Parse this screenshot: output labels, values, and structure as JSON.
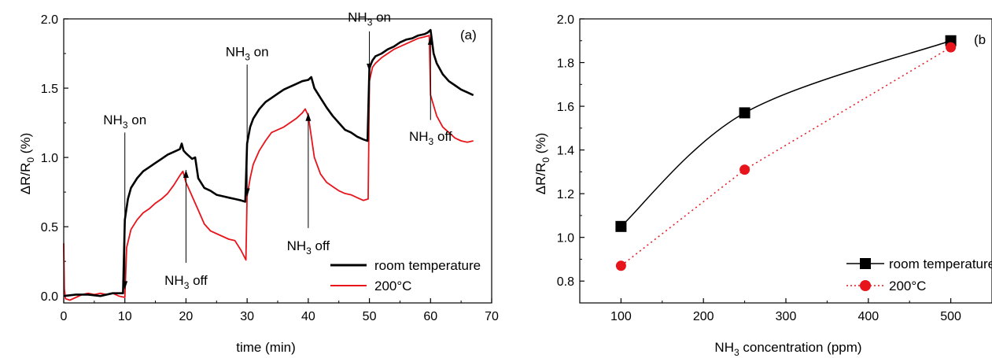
{
  "chart_data": [
    {
      "type": "line",
      "panel_label": "(a)",
      "xlabel": "time (min)",
      "ylabel": {
        "base": "ΔR/R",
        "sub": "0",
        "tail": " (%)"
      },
      "xlim": [
        0,
        70
      ],
      "ylim": [
        -0.05,
        2.0
      ],
      "x_ticks": [
        0,
        10,
        20,
        30,
        40,
        50,
        60,
        70
      ],
      "y_ticks": [
        0.0,
        0.5,
        1.0,
        1.5,
        2.0
      ],
      "y_tick_labels": [
        "0.0",
        "0.5",
        "1.0",
        "1.5",
        "2.0"
      ],
      "legend_position": "bottom-right",
      "series": [
        {
          "name": "room temperature",
          "color": "#000000",
          "x": [
            0,
            2,
            4,
            6,
            8,
            9.7,
            10,
            10.5,
            11,
            12,
            13,
            14,
            15,
            16,
            17,
            18,
            19,
            19.3,
            19.6,
            20,
            21,
            21.5,
            22,
            23,
            24,
            25,
            26,
            27,
            28,
            29,
            29.7,
            30,
            30.5,
            31,
            32,
            33,
            34,
            35,
            36,
            37,
            38,
            39,
            40,
            40.5,
            41,
            42,
            43,
            44,
            45,
            46,
            47,
            48,
            49,
            49.7,
            50,
            50.5,
            51,
            52,
            53,
            54,
            55,
            56,
            57,
            58,
            59,
            59.5,
            60,
            60.5,
            61,
            62,
            63,
            64,
            65,
            66,
            67
          ],
          "y": [
            0.0,
            0.01,
            0.01,
            0.0,
            0.02,
            0.02,
            0.55,
            0.7,
            0.78,
            0.85,
            0.9,
            0.93,
            0.96,
            0.99,
            1.02,
            1.04,
            1.06,
            1.1,
            1.05,
            1.03,
            0.99,
            1.0,
            0.85,
            0.78,
            0.76,
            0.73,
            0.72,
            0.71,
            0.7,
            0.69,
            0.68,
            1.1,
            1.22,
            1.28,
            1.35,
            1.4,
            1.43,
            1.46,
            1.49,
            1.51,
            1.53,
            1.55,
            1.56,
            1.58,
            1.5,
            1.43,
            1.36,
            1.3,
            1.25,
            1.2,
            1.18,
            1.15,
            1.13,
            1.12,
            1.65,
            1.7,
            1.73,
            1.75,
            1.78,
            1.8,
            1.83,
            1.85,
            1.86,
            1.88,
            1.89,
            1.9,
            1.92,
            1.75,
            1.68,
            1.6,
            1.55,
            1.52,
            1.49,
            1.47,
            1.45
          ]
        },
        {
          "name": "200°C",
          "color": "#e8141b",
          "x": [
            0,
            0.1,
            0.3,
            1,
            2,
            3,
            4,
            5,
            6,
            7,
            8,
            9,
            10,
            10.3,
            11,
            12,
            13,
            14,
            15,
            16,
            17,
            18,
            19,
            19.5,
            20,
            21,
            22,
            23,
            24,
            25,
            26,
            27,
            28,
            29,
            29.8,
            30,
            30.5,
            31,
            32,
            33,
            34,
            35,
            36,
            37,
            38,
            39,
            39.5,
            40,
            41,
            42,
            43,
            44,
            45,
            46,
            47,
            48,
            49,
            49.8,
            50,
            50.5,
            51,
            52,
            53,
            54,
            55,
            56,
            57,
            58,
            59,
            59.8,
            60,
            61,
            62,
            63,
            64,
            65,
            66,
            67
          ],
          "y": [
            0.38,
            0.05,
            -0.02,
            -0.03,
            -0.01,
            0.01,
            0.02,
            0.01,
            0.02,
            0.01,
            0.02,
            0.0,
            -0.01,
            0.35,
            0.48,
            0.55,
            0.6,
            0.63,
            0.67,
            0.7,
            0.74,
            0.8,
            0.87,
            0.9,
            0.82,
            0.72,
            0.62,
            0.52,
            0.47,
            0.45,
            0.43,
            0.41,
            0.4,
            0.33,
            0.26,
            0.72,
            0.85,
            0.95,
            1.05,
            1.12,
            1.18,
            1.2,
            1.22,
            1.25,
            1.28,
            1.32,
            1.35,
            1.3,
            1.0,
            0.88,
            0.82,
            0.79,
            0.76,
            0.74,
            0.73,
            0.71,
            0.69,
            0.7,
            1.55,
            1.65,
            1.68,
            1.72,
            1.75,
            1.78,
            1.8,
            1.82,
            1.84,
            1.86,
            1.87,
            1.88,
            1.45,
            1.3,
            1.22,
            1.18,
            1.14,
            1.12,
            1.11,
            1.12
          ]
        }
      ],
      "annotations": [
        {
          "base": "NH",
          "sub": "3",
          "tail": " on",
          "kind": "on",
          "x": 10,
          "label_y": 1.24,
          "arrow_from": 1.18,
          "arrow_to": 0.05
        },
        {
          "base": "NH",
          "sub": "3",
          "tail": " off",
          "kind": "off",
          "x": 20,
          "label_y": 0.08,
          "arrow_from": 0.24,
          "arrow_to": 0.91
        },
        {
          "base": "NH",
          "sub": "3",
          "tail": " on",
          "kind": "on",
          "x": 30,
          "label_y": 1.73,
          "arrow_from": 1.67,
          "arrow_to": 0.72
        },
        {
          "base": "NH",
          "sub": "3",
          "tail": " off",
          "kind": "off",
          "x": 40,
          "label_y": 0.33,
          "arrow_from": 0.49,
          "arrow_to": 1.32
        },
        {
          "base": "NH",
          "sub": "3",
          "tail": " on",
          "kind": "on",
          "x": 50,
          "label_y": 1.98,
          "arrow_from": 1.91,
          "arrow_to": 1.62
        },
        {
          "base": "NH",
          "sub": "3",
          "tail": " off",
          "kind": "off",
          "x": 60,
          "label_y": 1.12,
          "arrow_from": 1.27,
          "arrow_to": 1.87
        }
      ]
    },
    {
      "type": "line",
      "panel_label": "(b",
      "xlabel": {
        "base": "NH",
        "sub": "3",
        "tail": " concentration (ppm)"
      },
      "ylabel": {
        "base": "ΔR/R",
        "sub": "0",
        "tail": " (%)"
      },
      "xlim": [
        50,
        550
      ],
      "ylim": [
        0.7,
        2.0
      ],
      "x_ticks": [
        100,
        200,
        300,
        400,
        500
      ],
      "y_ticks": [
        0.8,
        1.0,
        1.2,
        1.4,
        1.6,
        1.8,
        2.0
      ],
      "y_tick_labels": [
        "0.8",
        "1.0",
        "1.2",
        "1.4",
        "1.6",
        "1.8",
        "2.0"
      ],
      "legend_position": "bottom-right",
      "series": [
        {
          "name": "room temperature",
          "color": "#000000",
          "marker": "square",
          "line": "solid",
          "x": [
            100,
            250,
            500
          ],
          "y": [
            1.05,
            1.57,
            1.9
          ]
        },
        {
          "name": "200°C",
          "color": "#e8141b",
          "marker": "circle",
          "line": "dotted",
          "x": [
            100,
            250,
            500
          ],
          "y": [
            0.87,
            1.31,
            1.87
          ]
        }
      ]
    }
  ]
}
